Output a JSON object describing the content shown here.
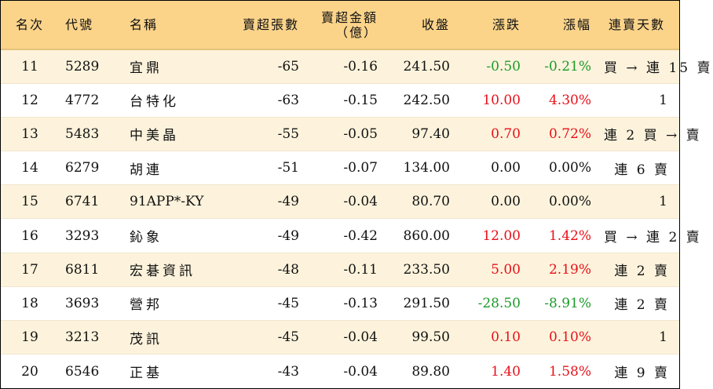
{
  "headers": {
    "rank": "名次",
    "code": "代號",
    "name": "名稱",
    "net_sell_volume": "賣超張數",
    "net_sell_amount_line1": "賣超金額",
    "net_sell_amount_line2": "（億）",
    "close": "收盤",
    "change": "漲跌",
    "change_pct": "漲幅",
    "consecutive_days": "連賣天數"
  },
  "colors": {
    "header_bg": "#fbd48a",
    "odd_row_bg": "#fdf3dc",
    "up": "#e8101a",
    "down": "#1c9a2a"
  },
  "rows": [
    {
      "rank": "11",
      "code": "5289",
      "name": "宜鼎",
      "volume": "-65",
      "amount": "-0.16",
      "close": "241.50",
      "change": "-0.50",
      "change_pct": "-0.21%",
      "direction": "down",
      "days": "買 → 連 15 賣"
    },
    {
      "rank": "12",
      "code": "4772",
      "name": "台特化",
      "volume": "-63",
      "amount": "-0.15",
      "close": "242.50",
      "change": "10.00",
      "change_pct": "4.30%",
      "direction": "up",
      "days": "1"
    },
    {
      "rank": "13",
      "code": "5483",
      "name": "中美晶",
      "volume": "-55",
      "amount": "-0.05",
      "close": "97.40",
      "change": "0.70",
      "change_pct": "0.72%",
      "direction": "up",
      "days": "連 2 買 → 賣"
    },
    {
      "rank": "14",
      "code": "6279",
      "name": "胡連",
      "volume": "-51",
      "amount": "-0.07",
      "close": "134.00",
      "change": "0.00",
      "change_pct": "0.00%",
      "direction": "flat",
      "days": "連 6 賣"
    },
    {
      "rank": "15",
      "code": "6741",
      "name": "91APP*-KY",
      "volume": "-49",
      "amount": "-0.04",
      "close": "80.70",
      "change": "0.00",
      "change_pct": "0.00%",
      "direction": "flat",
      "days": "1"
    },
    {
      "rank": "16",
      "code": "3293",
      "name": "鈊象",
      "volume": "-49",
      "amount": "-0.42",
      "close": "860.00",
      "change": "12.00",
      "change_pct": "1.42%",
      "direction": "up",
      "days": "買 → 連 2 賣"
    },
    {
      "rank": "17",
      "code": "6811",
      "name": "宏碁資訊",
      "volume": "-48",
      "amount": "-0.11",
      "close": "233.50",
      "change": "5.00",
      "change_pct": "2.19%",
      "direction": "up",
      "days": "連 2 賣"
    },
    {
      "rank": "18",
      "code": "3693",
      "name": "營邦",
      "volume": "-45",
      "amount": "-0.13",
      "close": "291.50",
      "change": "-28.50",
      "change_pct": "-8.91%",
      "direction": "down",
      "days": "連 2 賣"
    },
    {
      "rank": "19",
      "code": "3213",
      "name": "茂訊",
      "volume": "-45",
      "amount": "-0.04",
      "close": "99.50",
      "change": "0.10",
      "change_pct": "0.10%",
      "direction": "up",
      "days": "1"
    },
    {
      "rank": "20",
      "code": "6546",
      "name": "正基",
      "volume": "-43",
      "amount": "-0.04",
      "close": "89.80",
      "change": "1.40",
      "change_pct": "1.58%",
      "direction": "up",
      "days": "連 9 賣"
    }
  ]
}
